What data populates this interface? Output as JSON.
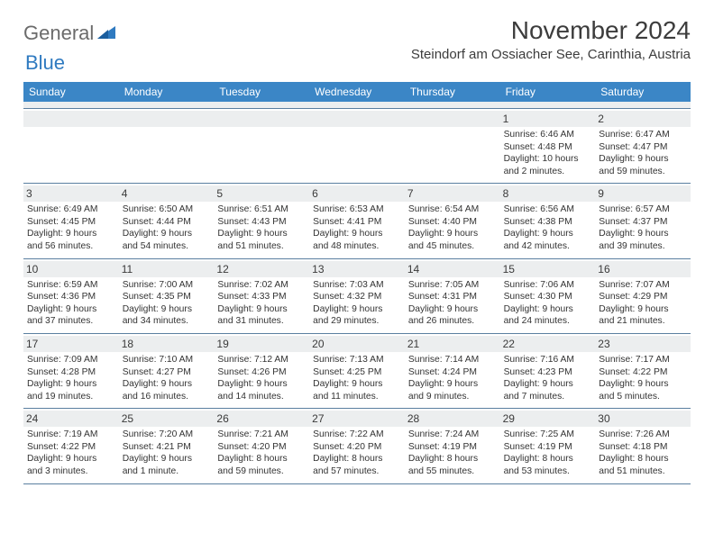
{
  "logo": {
    "text_gray": "General",
    "text_blue": "Blue"
  },
  "title": "November 2024",
  "location": "Steindorf am Ossiacher See, Carinthia, Austria",
  "weekdays": [
    "Sunday",
    "Monday",
    "Tuesday",
    "Wednesday",
    "Thursday",
    "Friday",
    "Saturday"
  ],
  "colors": {
    "header_bg": "#3b86c6",
    "header_text": "#ffffff",
    "daynum_bg": "#eceeef",
    "border": "#5a7fa0",
    "body_text": "#333333"
  },
  "weeks": [
    [
      {
        "n": "",
        "sr": "",
        "ss": "",
        "dl1": "",
        "dl2": ""
      },
      {
        "n": "",
        "sr": "",
        "ss": "",
        "dl1": "",
        "dl2": ""
      },
      {
        "n": "",
        "sr": "",
        "ss": "",
        "dl1": "",
        "dl2": ""
      },
      {
        "n": "",
        "sr": "",
        "ss": "",
        "dl1": "",
        "dl2": ""
      },
      {
        "n": "",
        "sr": "",
        "ss": "",
        "dl1": "",
        "dl2": ""
      },
      {
        "n": "1",
        "sr": "Sunrise: 6:46 AM",
        "ss": "Sunset: 4:48 PM",
        "dl1": "Daylight: 10 hours",
        "dl2": "and 2 minutes."
      },
      {
        "n": "2",
        "sr": "Sunrise: 6:47 AM",
        "ss": "Sunset: 4:47 PM",
        "dl1": "Daylight: 9 hours",
        "dl2": "and 59 minutes."
      }
    ],
    [
      {
        "n": "3",
        "sr": "Sunrise: 6:49 AM",
        "ss": "Sunset: 4:45 PM",
        "dl1": "Daylight: 9 hours",
        "dl2": "and 56 minutes."
      },
      {
        "n": "4",
        "sr": "Sunrise: 6:50 AM",
        "ss": "Sunset: 4:44 PM",
        "dl1": "Daylight: 9 hours",
        "dl2": "and 54 minutes."
      },
      {
        "n": "5",
        "sr": "Sunrise: 6:51 AM",
        "ss": "Sunset: 4:43 PM",
        "dl1": "Daylight: 9 hours",
        "dl2": "and 51 minutes."
      },
      {
        "n": "6",
        "sr": "Sunrise: 6:53 AM",
        "ss": "Sunset: 4:41 PM",
        "dl1": "Daylight: 9 hours",
        "dl2": "and 48 minutes."
      },
      {
        "n": "7",
        "sr": "Sunrise: 6:54 AM",
        "ss": "Sunset: 4:40 PM",
        "dl1": "Daylight: 9 hours",
        "dl2": "and 45 minutes."
      },
      {
        "n": "8",
        "sr": "Sunrise: 6:56 AM",
        "ss": "Sunset: 4:38 PM",
        "dl1": "Daylight: 9 hours",
        "dl2": "and 42 minutes."
      },
      {
        "n": "9",
        "sr": "Sunrise: 6:57 AM",
        "ss": "Sunset: 4:37 PM",
        "dl1": "Daylight: 9 hours",
        "dl2": "and 39 minutes."
      }
    ],
    [
      {
        "n": "10",
        "sr": "Sunrise: 6:59 AM",
        "ss": "Sunset: 4:36 PM",
        "dl1": "Daylight: 9 hours",
        "dl2": "and 37 minutes."
      },
      {
        "n": "11",
        "sr": "Sunrise: 7:00 AM",
        "ss": "Sunset: 4:35 PM",
        "dl1": "Daylight: 9 hours",
        "dl2": "and 34 minutes."
      },
      {
        "n": "12",
        "sr": "Sunrise: 7:02 AM",
        "ss": "Sunset: 4:33 PM",
        "dl1": "Daylight: 9 hours",
        "dl2": "and 31 minutes."
      },
      {
        "n": "13",
        "sr": "Sunrise: 7:03 AM",
        "ss": "Sunset: 4:32 PM",
        "dl1": "Daylight: 9 hours",
        "dl2": "and 29 minutes."
      },
      {
        "n": "14",
        "sr": "Sunrise: 7:05 AM",
        "ss": "Sunset: 4:31 PM",
        "dl1": "Daylight: 9 hours",
        "dl2": "and 26 minutes."
      },
      {
        "n": "15",
        "sr": "Sunrise: 7:06 AM",
        "ss": "Sunset: 4:30 PM",
        "dl1": "Daylight: 9 hours",
        "dl2": "and 24 minutes."
      },
      {
        "n": "16",
        "sr": "Sunrise: 7:07 AM",
        "ss": "Sunset: 4:29 PM",
        "dl1": "Daylight: 9 hours",
        "dl2": "and 21 minutes."
      }
    ],
    [
      {
        "n": "17",
        "sr": "Sunrise: 7:09 AM",
        "ss": "Sunset: 4:28 PM",
        "dl1": "Daylight: 9 hours",
        "dl2": "and 19 minutes."
      },
      {
        "n": "18",
        "sr": "Sunrise: 7:10 AM",
        "ss": "Sunset: 4:27 PM",
        "dl1": "Daylight: 9 hours",
        "dl2": "and 16 minutes."
      },
      {
        "n": "19",
        "sr": "Sunrise: 7:12 AM",
        "ss": "Sunset: 4:26 PM",
        "dl1": "Daylight: 9 hours",
        "dl2": "and 14 minutes."
      },
      {
        "n": "20",
        "sr": "Sunrise: 7:13 AM",
        "ss": "Sunset: 4:25 PM",
        "dl1": "Daylight: 9 hours",
        "dl2": "and 11 minutes."
      },
      {
        "n": "21",
        "sr": "Sunrise: 7:14 AM",
        "ss": "Sunset: 4:24 PM",
        "dl1": "Daylight: 9 hours",
        "dl2": "and 9 minutes."
      },
      {
        "n": "22",
        "sr": "Sunrise: 7:16 AM",
        "ss": "Sunset: 4:23 PM",
        "dl1": "Daylight: 9 hours",
        "dl2": "and 7 minutes."
      },
      {
        "n": "23",
        "sr": "Sunrise: 7:17 AM",
        "ss": "Sunset: 4:22 PM",
        "dl1": "Daylight: 9 hours",
        "dl2": "and 5 minutes."
      }
    ],
    [
      {
        "n": "24",
        "sr": "Sunrise: 7:19 AM",
        "ss": "Sunset: 4:22 PM",
        "dl1": "Daylight: 9 hours",
        "dl2": "and 3 minutes."
      },
      {
        "n": "25",
        "sr": "Sunrise: 7:20 AM",
        "ss": "Sunset: 4:21 PM",
        "dl1": "Daylight: 9 hours",
        "dl2": "and 1 minute."
      },
      {
        "n": "26",
        "sr": "Sunrise: 7:21 AM",
        "ss": "Sunset: 4:20 PM",
        "dl1": "Daylight: 8 hours",
        "dl2": "and 59 minutes."
      },
      {
        "n": "27",
        "sr": "Sunrise: 7:22 AM",
        "ss": "Sunset: 4:20 PM",
        "dl1": "Daylight: 8 hours",
        "dl2": "and 57 minutes."
      },
      {
        "n": "28",
        "sr": "Sunrise: 7:24 AM",
        "ss": "Sunset: 4:19 PM",
        "dl1": "Daylight: 8 hours",
        "dl2": "and 55 minutes."
      },
      {
        "n": "29",
        "sr": "Sunrise: 7:25 AM",
        "ss": "Sunset: 4:19 PM",
        "dl1": "Daylight: 8 hours",
        "dl2": "and 53 minutes."
      },
      {
        "n": "30",
        "sr": "Sunrise: 7:26 AM",
        "ss": "Sunset: 4:18 PM",
        "dl1": "Daylight: 8 hours",
        "dl2": "and 51 minutes."
      }
    ]
  ]
}
